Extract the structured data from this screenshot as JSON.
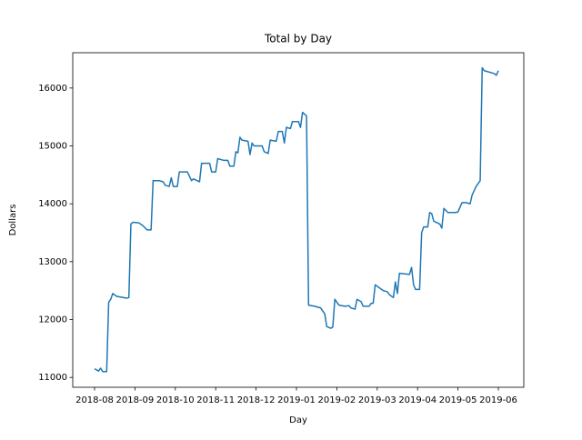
{
  "chart_data": {
    "type": "line",
    "title": "Total by Day",
    "x_label": "Day",
    "y_label": "Dollars",
    "xlim": [
      -0.54,
      10.63
    ],
    "ylim": [
      10830,
      16610
    ],
    "xticks": [
      {
        "value": 0,
        "label": "2018-08"
      },
      {
        "value": 1,
        "label": "2018-09"
      },
      {
        "value": 2,
        "label": "2018-10"
      },
      {
        "value": 3,
        "label": "2018-11"
      },
      {
        "value": 4,
        "label": "2018-12"
      },
      {
        "value": 5,
        "label": "2019-01"
      },
      {
        "value": 6,
        "label": "2019-02"
      },
      {
        "value": 7,
        "label": "2019-03"
      },
      {
        "value": 8,
        "label": "2019-04"
      },
      {
        "value": 9,
        "label": "2019-05"
      },
      {
        "value": 10,
        "label": "2019-06"
      }
    ],
    "yticks": [
      11000,
      12000,
      13000,
      14000,
      15000,
      16000
    ],
    "series": [
      {
        "color": "#1f77b4",
        "x": [
          0.0,
          0.05,
          0.1,
          0.15,
          0.2,
          0.3,
          0.35,
          0.4,
          0.45,
          0.55,
          0.8,
          0.85,
          0.9,
          0.95,
          1.1,
          1.2,
          1.3,
          1.4,
          1.45,
          1.6,
          1.7,
          1.75,
          1.85,
          1.9,
          1.95,
          2.05,
          2.1,
          2.3,
          2.4,
          2.45,
          2.6,
          2.65,
          2.85,
          2.9,
          3.0,
          3.05,
          3.2,
          3.3,
          3.35,
          3.45,
          3.5,
          3.55,
          3.6,
          3.65,
          3.8,
          3.85,
          3.9,
          3.95,
          4.15,
          4.2,
          4.3,
          4.35,
          4.5,
          4.55,
          4.65,
          4.7,
          4.75,
          4.85,
          4.9,
          5.05,
          5.1,
          5.15,
          5.25,
          5.3,
          5.45,
          5.55,
          5.6,
          5.7,
          5.75,
          5.85,
          5.9,
          5.95,
          6.05,
          6.2,
          6.3,
          6.35,
          6.45,
          6.5,
          6.6,
          6.65,
          6.8,
          6.85,
          6.9,
          6.95,
          7.05,
          7.15,
          7.25,
          7.3,
          7.4,
          7.45,
          7.5,
          7.55,
          7.8,
          7.85,
          7.9,
          7.95,
          8.05,
          8.1,
          8.15,
          8.25,
          8.3,
          8.35,
          8.4,
          8.55,
          8.6,
          8.65,
          8.75,
          8.95,
          9.0,
          9.1,
          9.2,
          9.3,
          9.35,
          9.45,
          9.55,
          9.6,
          9.65,
          9.9,
          9.95,
          10.0
        ],
        "values": [
          11150,
          11130,
          11110,
          11160,
          11100,
          11100,
          12300,
          12350,
          12450,
          12400,
          12370,
          12380,
          13650,
          13680,
          13670,
          13620,
          13550,
          13550,
          14400,
          14400,
          14380,
          14320,
          14300,
          14450,
          14300,
          14300,
          14550,
          14550,
          14400,
          14430,
          14380,
          14700,
          14700,
          14550,
          14550,
          14780,
          14750,
          14750,
          14650,
          14650,
          14900,
          14880,
          15150,
          15100,
          15080,
          14850,
          15050,
          15000,
          15000,
          14900,
          14870,
          15100,
          15080,
          15250,
          15250,
          15050,
          15320,
          15300,
          15420,
          15420,
          15320,
          15580,
          15520,
          12250,
          12230,
          12210,
          12200,
          12100,
          11880,
          11850,
          11870,
          12350,
          12250,
          12230,
          12240,
          12200,
          12180,
          12350,
          12310,
          12230,
          12230,
          12280,
          12280,
          12600,
          12550,
          12500,
          12480,
          12430,
          12380,
          12650,
          12450,
          12800,
          12780,
          12900,
          12600,
          12520,
          12520,
          13500,
          13600,
          13600,
          13850,
          13830,
          13700,
          13650,
          13580,
          13920,
          13850,
          13850,
          13860,
          14020,
          14020,
          14000,
          14150,
          14300,
          14400,
          16350,
          16300,
          16250,
          16220,
          16300
        ]
      }
    ]
  }
}
